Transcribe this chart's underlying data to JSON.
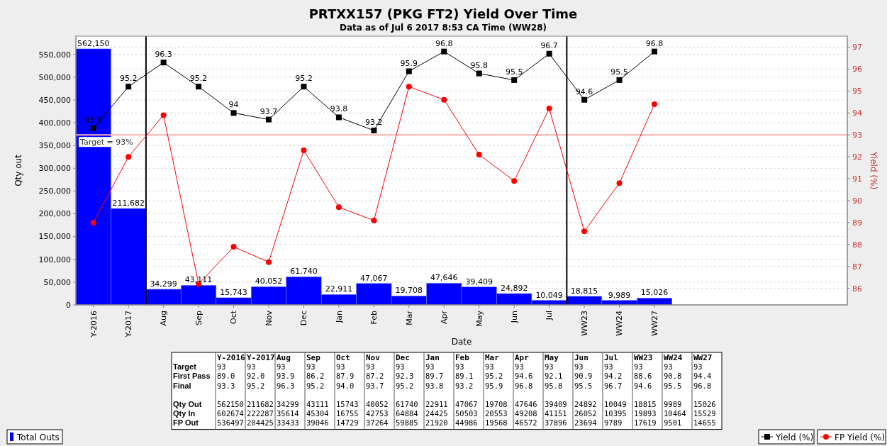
{
  "chart_data": [
    {
      "type": "bar",
      "title": "PRTXX157 (PKG FT2) Yield Over Time",
      "subtitle": "Data as of Jul 6 2017 8:53 CA Time (WW28)",
      "xlabel": "Date",
      "ylabel": "Qty out",
      "y2label": "Yield (%)",
      "categories": [
        "Y-2016",
        "Y-2017",
        "Aug",
        "Sep",
        "Oct",
        "Nov",
        "Dec",
        "Jan",
        "Feb",
        "Mar",
        "Apr",
        "May",
        "Jun",
        "Jul",
        "WW23",
        "WW24",
        "WW27",
        null,
        null,
        null,
        null,
        null
      ],
      "series": [
        {
          "name": "Total Outs",
          "type": "bar",
          "color": "#0000ff",
          "values": [
            562150,
            211682,
            34299,
            43111,
            15743,
            40052,
            61740,
            22911,
            47067,
            19708,
            47646,
            39409,
            24892,
            10049,
            18815,
            9989,
            15026,
            null,
            null,
            null,
            null,
            null
          ],
          "value_labels": [
            "562,150",
            "211,682",
            "34,299",
            "43,111",
            "15,743",
            "40,052",
            "61,740",
            "22,911",
            "47,067",
            "19,708",
            "47,646",
            "39,409",
            "24,892",
            "10,049",
            "18,815",
            "9,989",
            "15,026",
            null,
            null,
            null,
            null,
            null
          ]
        },
        {
          "name": "Yield (%)",
          "type": "line",
          "axis": "y2",
          "color": "#000000",
          "marker": "square",
          "values": [
            93.3,
            95.2,
            96.3,
            95.2,
            94,
            93.7,
            95.2,
            93.8,
            93.2,
            95.9,
            96.8,
            95.8,
            95.5,
            96.7,
            94.6,
            95.5,
            96.8,
            null,
            null,
            null,
            null,
            null
          ],
          "value_labels": [
            "93.3",
            "95.2",
            "96.3",
            "95.2",
            "94",
            "93.7",
            "95.2",
            "93.8",
            "93.2",
            "95.9",
            "96.8",
            "95.8",
            "95.5",
            "96.7",
            "94.6",
            "95.5",
            "96.8",
            null,
            null,
            null,
            null,
            null
          ]
        },
        {
          "name": "FP Yield (%)",
          "type": "line",
          "axis": "y2",
          "color": "#ff0000",
          "marker": "circle",
          "values": [
            89.0,
            92.0,
            93.9,
            86.2,
            87.9,
            87.2,
            92.3,
            89.7,
            89.1,
            95.2,
            94.6,
            92.1,
            90.9,
            94.2,
            88.6,
            90.8,
            94.4,
            null,
            null,
            null,
            null,
            null
          ]
        }
      ],
      "ylim": [
        0,
        590000
      ],
      "yticks": [
        {
          "value": 0,
          "label": "0"
        },
        {
          "value": 50000,
          "label": "50,000"
        },
        {
          "value": 100000,
          "label": "100,000"
        },
        {
          "value": 150000,
          "label": "150,000"
        },
        {
          "value": 200000,
          "label": "200,000"
        },
        {
          "value": 250000,
          "label": "250,000"
        },
        {
          "value": 300000,
          "label": "300,000"
        },
        {
          "value": 350000,
          "label": "350,000"
        },
        {
          "value": 400000,
          "label": "400,000"
        },
        {
          "value": 450000,
          "label": "450,000"
        },
        {
          "value": 500000,
          "label": "500,000"
        },
        {
          "value": 550000,
          "label": "550,000"
        }
      ],
      "y2lim": [
        85.25,
        97.5
      ],
      "y2ticks": [
        86,
        87,
        88,
        89,
        90,
        91,
        92,
        93,
        94,
        95,
        96,
        97
      ],
      "ref_lines": [
        {
          "axis": "y2",
          "value": 93,
          "label": "Target = 93%",
          "color": "#ffb0b0"
        }
      ],
      "grid": "y",
      "legend": "bottom"
    },
    {
      "type": "other",
      "data_labels": true,
      "categories": [
        "Y-2016",
        "Y-2017",
        "Aug",
        "Sep",
        "Oct",
        "Nov",
        "Dec",
        "Jan",
        "Feb",
        "Mar",
        "Apr",
        "May",
        "Jun",
        "Jul",
        "WW23",
        "WW24",
        "WW27"
      ],
      "series": [
        {
          "name": "Target",
          "values": [
            93,
            93,
            93,
            93,
            93,
            93,
            93,
            93,
            93,
            93,
            93,
            93,
            93,
            93,
            93,
            93,
            93
          ]
        },
        {
          "name": "First Pass",
          "values": [
            89.0,
            92.0,
            93.9,
            86.2,
            87.9,
            87.2,
            92.3,
            89.7,
            89.1,
            95.2,
            94.6,
            92.1,
            90.9,
            94.2,
            88.6,
            90.8,
            94.4
          ],
          "value_labels": [
            "89.0",
            "92.0",
            "93.9",
            "86.2",
            "87.9",
            "87.2",
            "92.3",
            "89.7",
            "89.1",
            "95.2",
            "94.6",
            "92.1",
            "90.9",
            "94.2",
            "88.6",
            "90.8",
            "94.4"
          ]
        },
        {
          "name": "Final",
          "values": [
            93.3,
            95.2,
            96.3,
            95.2,
            94.0,
            93.7,
            95.2,
            93.8,
            93.2,
            95.9,
            96.8,
            95.8,
            95.5,
            96.7,
            94.6,
            95.5,
            96.8
          ],
          "value_labels": [
            "93.3",
            "95.2",
            "96.3",
            "95.2",
            "94.0",
            "93.7",
            "95.2",
            "93.8",
            "93.2",
            "95.9",
            "96.8",
            "95.8",
            "95.5",
            "96.7",
            "94.6",
            "95.5",
            "96.8"
          ]
        },
        {
          "name": "Qty Out",
          "values": [
            562150,
            211682,
            34299,
            43111,
            15743,
            40052,
            61740,
            22911,
            47067,
            19708,
            47646,
            39409,
            24892,
            10049,
            18815,
            9989,
            15026
          ]
        },
        {
          "name": "Qty In",
          "values": [
            602674,
            222287,
            35614,
            45304,
            16755,
            42753,
            64884,
            24425,
            50503,
            20553,
            49208,
            41151,
            26052,
            10395,
            19893,
            10464,
            15529
          ]
        },
        {
          "name": "FP Out",
          "values": [
            536497,
            204425,
            33433,
            39046,
            14729,
            37264,
            59885,
            21920,
            44986,
            19568,
            46572,
            37896,
            23694,
            9789,
            17619,
            9501,
            14655
          ]
        }
      ]
    }
  ]
}
